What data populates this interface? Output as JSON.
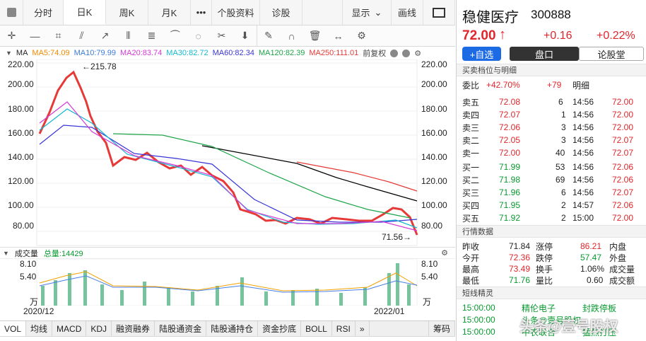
{
  "tabs": [
    "分时",
    "日K",
    "周K",
    "月K",
    "•••",
    "个股资料",
    "诊股"
  ],
  "top_right": [
    "显示",
    "画线"
  ],
  "ma": {
    "label": "MA",
    "items": [
      {
        "name": "MA5:74.09",
        "color": "#f28b00"
      },
      {
        "name": "MA10:79.99",
        "color": "#3b7bd8"
      },
      {
        "name": "MA20:83.74",
        "color": "#d43ad5"
      },
      {
        "name": "MA30:82.72",
        "color": "#15b8d0"
      },
      {
        "name": "MA60:82.34",
        "color": "#3a35d7"
      },
      {
        "name": "MA120:82.39",
        "color": "#1ea44a"
      },
      {
        "name": "MA250:111.01",
        "color": "#e53a37"
      }
    ],
    "overflow": "前复权"
  },
  "prices": [
    "220.00",
    "200.00",
    "180.00",
    "160.00",
    "140.00",
    "120.00",
    "100.00",
    "80.00"
  ],
  "annotations": {
    "high": "←215.78",
    "low": "71.56→"
  },
  "volume": {
    "title": "成交量",
    "total": "总量:14429",
    "ticks": [
      "8.10",
      "5.40",
      "万"
    ]
  },
  "dates": [
    "2020/12",
    "2022/01"
  ],
  "bottom_tabs": [
    "VOL",
    "均线",
    "MACD",
    "KDJ",
    "融资融券",
    "陆股通资金",
    "陆股通持仓",
    "资金抄底",
    "BOLL",
    "RSI",
    "筹码"
  ],
  "stock": {
    "name": "稳健医疗",
    "code": "300888",
    "price": "72.00",
    "arrow": "↑",
    "change": "+0.16",
    "pct": "+0.22%"
  },
  "buttons": {
    "add": "+自选",
    "panel": "盘口",
    "talk": "论股堂"
  },
  "book_title": "买卖档位与明细",
  "wb": {
    "label": "委比",
    "value": "+42.70%",
    "diff": "+79"
  },
  "sell": [
    {
      "name": "卖五",
      "price": "72.08",
      "vol": "6"
    },
    {
      "name": "卖四",
      "price": "72.07",
      "vol": "1"
    },
    {
      "name": "卖三",
      "price": "72.06",
      "vol": "3"
    },
    {
      "name": "卖二",
      "price": "72.05",
      "vol": "3"
    },
    {
      "name": "卖一",
      "price": "72.00",
      "vol": "40"
    }
  ],
  "buy": [
    {
      "name": "买一",
      "price": "71.99",
      "vol": "53"
    },
    {
      "name": "买二",
      "price": "71.98",
      "vol": "69"
    },
    {
      "name": "买三",
      "price": "71.96",
      "vol": "6"
    },
    {
      "name": "买四",
      "price": "71.95",
      "vol": "2"
    },
    {
      "name": "买五",
      "price": "71.92",
      "vol": "2"
    }
  ],
  "detail_title": "明细",
  "detail": [
    {
      "t": "14:56",
      "p": "72.00"
    },
    {
      "t": "14:56",
      "p": "72.00"
    },
    {
      "t": "14:56",
      "p": "72.00"
    },
    {
      "t": "14:56",
      "p": "72.07"
    },
    {
      "t": "14:56",
      "p": "72.07"
    },
    {
      "t": "14:56",
      "p": "72.06"
    },
    {
      "t": "14:56",
      "p": "72.06"
    },
    {
      "t": "14:56",
      "p": "72.07"
    },
    {
      "t": "14:57",
      "p": "72.06"
    },
    {
      "t": "15:00",
      "p": "72.00"
    }
  ],
  "quote_title": "行情数据",
  "quote": [
    {
      "a": "昨收",
      "b": "71.84",
      "c": "涨停",
      "d": "86.21",
      "e": "内盘"
    },
    {
      "a": "今开",
      "b": "72.36",
      "c": "跌停",
      "d": "57.47",
      "e": "外盘"
    },
    {
      "a": "最高",
      "b": "73.49",
      "c": "换手",
      "d": "1.06%",
      "e": "成交量"
    },
    {
      "a": "最低",
      "b": "71.76",
      "c": "量比",
      "d": "0.60",
      "e": "成交额"
    }
  ],
  "flash_title": "短线精灵",
  "flash": [
    {
      "t": "15:00:00",
      "n": "精伦电子",
      "s": "封跌停板"
    },
    {
      "t": "15:00:00",
      "n": "头条@壹号股权",
      "s": ""
    },
    {
      "t": "15:00:00",
      "n": "中农联合",
      "s": "猛烈打压"
    }
  ],
  "watermark": "头条@壹号股权"
}
